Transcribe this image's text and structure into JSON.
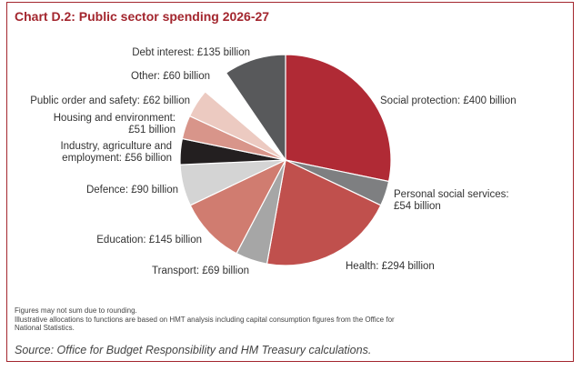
{
  "title": "Chart D.2: Public sector spending 2026-27",
  "chart_data": {
    "type": "pie",
    "title": "Chart D.2: Public sector spending 2026-27",
    "unit": "£ billion",
    "slices": [
      {
        "name": "Social protection",
        "value": 400,
        "label_lines": [
          "Social protection: £400 billion"
        ],
        "color": "#b02a35"
      },
      {
        "name": "Personal social services",
        "value": 54,
        "label_lines": [
          "Personal social services:",
          "£54 billion"
        ],
        "color": "#7e7f81"
      },
      {
        "name": "Health",
        "value": 294,
        "label_lines": [
          "Health: £294 billion"
        ],
        "color": "#c0504d"
      },
      {
        "name": "Transport",
        "value": 69,
        "label_lines": [
          "Transport: £69 billion"
        ],
        "color": "#a6a6a6"
      },
      {
        "name": "Education",
        "value": 145,
        "label_lines": [
          "Education: £145 billion"
        ],
        "color": "#d07c70"
      },
      {
        "name": "Defence",
        "value": 90,
        "label_lines": [
          "Defence: £90 billion"
        ],
        "color": "#d4d4d4"
      },
      {
        "name": "Industry, agriculture and employment",
        "value": 56,
        "label_lines": [
          "Industry, agriculture and",
          "employment: £56 billion"
        ],
        "color": "#231f20"
      },
      {
        "name": "Housing and environment",
        "value": 51,
        "label_lines": [
          "Housing and environment:",
          "£51 billion"
        ],
        "color": "#d8958a"
      },
      {
        "name": "Public order and safety",
        "value": 62,
        "label_lines": [
          "Public order and safety: £62 billion"
        ],
        "color": "#eccac1"
      },
      {
        "name": "Other",
        "value": 60,
        "label_lines": [
          "Other: £60 billion"
        ],
        "color": "#ffffff"
      },
      {
        "name": "Debt interest",
        "value": 135,
        "label_lines": [
          "Debt interest: £135 billion"
        ],
        "color": "#58595b"
      }
    ]
  },
  "notes": {
    "line1": "Figures may not sum due to rounding.",
    "line2": "Illustrative allocations to functions are based on HMT analysis including capital consumption figures from the Office for",
    "line3": "National Statistics."
  },
  "source": "Source: Office for Budget Responsibility and HM Treasury calculations."
}
